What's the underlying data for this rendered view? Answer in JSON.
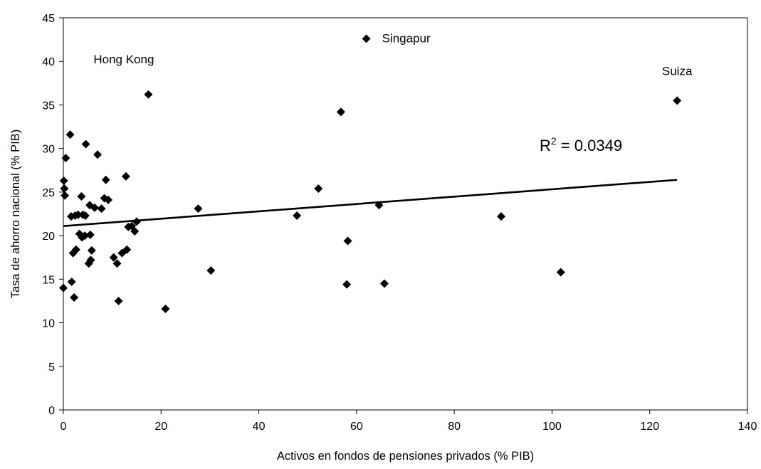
{
  "chart_data": {
    "type": "scatter",
    "title": "",
    "xlabel": "Activos en fondos de pensiones privados (% PIB)",
    "ylabel": "Tasa de ahorro nacional (% PIB)",
    "xlim": [
      0,
      140
    ],
    "ylim": [
      0,
      45
    ],
    "x_ticks": [
      "0",
      "20",
      "40",
      "60",
      "80",
      "100",
      "120",
      "140"
    ],
    "y_ticks": [
      "0",
      "5",
      "10",
      "15",
      "20",
      "25",
      "30",
      "35",
      "40",
      "45"
    ],
    "grid": false,
    "marker": "diamond",
    "series": [
      {
        "points": [
          [
            0.0,
            14.0
          ],
          [
            0.1,
            26.3
          ],
          [
            0.2,
            25.4
          ],
          [
            0.3,
            24.6
          ],
          [
            0.5,
            28.9
          ],
          [
            1.4,
            31.6
          ],
          [
            1.6,
            22.2
          ],
          [
            1.7,
            14.7
          ],
          [
            2.0,
            18.0
          ],
          [
            2.2,
            12.9
          ],
          [
            2.4,
            22.3
          ],
          [
            2.6,
            18.4
          ],
          [
            3.0,
            22.4
          ],
          [
            3.3,
            20.2
          ],
          [
            3.7,
            24.5
          ],
          [
            3.8,
            19.8
          ],
          [
            4.0,
            22.4
          ],
          [
            4.4,
            20.0
          ],
          [
            4.5,
            22.3
          ],
          [
            4.6,
            30.5
          ],
          [
            5.2,
            16.8
          ],
          [
            5.4,
            23.5
          ],
          [
            5.5,
            20.1
          ],
          [
            5.6,
            17.2
          ],
          [
            5.8,
            18.3
          ],
          [
            6.4,
            23.2
          ],
          [
            7.0,
            29.3
          ],
          [
            7.8,
            23.1
          ],
          [
            8.4,
            24.3
          ],
          [
            8.7,
            26.4
          ],
          [
            9.2,
            24.1
          ],
          [
            10.3,
            17.5
          ],
          [
            11.0,
            16.8
          ],
          [
            11.3,
            12.5
          ],
          [
            12.0,
            18.0
          ],
          [
            12.8,
            26.8
          ],
          [
            13.0,
            18.4
          ],
          [
            13.3,
            21.0
          ],
          [
            14.0,
            21.1
          ],
          [
            14.6,
            20.5
          ],
          [
            15.0,
            21.6
          ],
          [
            17.4,
            36.2
          ],
          [
            20.9,
            11.6
          ],
          [
            27.6,
            23.1
          ],
          [
            30.2,
            16.0
          ],
          [
            47.8,
            22.3
          ],
          [
            52.2,
            25.4
          ],
          [
            56.8,
            34.2
          ],
          [
            58.0,
            14.4
          ],
          [
            58.2,
            19.4
          ],
          [
            62.0,
            42.6
          ],
          [
            64.6,
            23.5
          ],
          [
            65.7,
            14.5
          ],
          [
            89.6,
            22.2
          ],
          [
            101.8,
            15.8
          ],
          [
            125.6,
            35.5
          ]
        ]
      }
    ],
    "trendline": {
      "type": "linear",
      "x_range": [
        0,
        125.6
      ],
      "y_at_start": 21.1,
      "y_at_end": 26.4
    },
    "annotations": [
      {
        "text": "Singapur",
        "x": 62.0,
        "y": 42.6
      },
      {
        "text": "Hong Kong",
        "x": 17.4,
        "y": 36.2
      },
      {
        "text": "Suiza",
        "x": 125.6,
        "y": 35.5
      }
    ],
    "r_squared_label": {
      "base": "R",
      "sup": "2",
      "rest": " = 0.0349"
    }
  }
}
